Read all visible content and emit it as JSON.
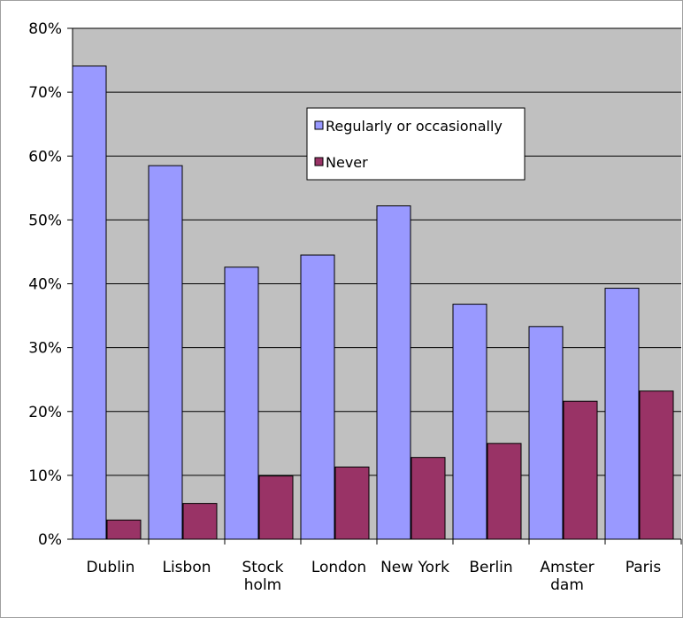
{
  "chart_data": {
    "type": "bar",
    "categories": [
      [
        "Dublin"
      ],
      [
        "Lisbon"
      ],
      [
        "Stock",
        "holm"
      ],
      [
        "London"
      ],
      [
        "New York"
      ],
      [
        "Berlin"
      ],
      [
        "Amster",
        "dam"
      ],
      [
        "Paris"
      ]
    ],
    "series": [
      {
        "name": "Regularly or occasionally",
        "values": [
          74.1,
          58.5,
          42.6,
          44.5,
          52.2,
          36.8,
          33.3,
          39.3
        ]
      },
      {
        "name": "Never",
        "values": [
          3.0,
          5.6,
          9.9,
          11.3,
          12.8,
          15.0,
          21.6,
          23.2
        ]
      }
    ],
    "ylim": [
      0,
      80
    ],
    "yticks": [
      "0%",
      "10%",
      "20%",
      "30%",
      "40%",
      "50%",
      "60%",
      "70%",
      "80%"
    ],
    "grid": true,
    "legend_position": "center-top",
    "colors": {
      "plot_background": "#c0c0c0",
      "series": [
        "#9999ff",
        "#993366"
      ],
      "grid": "#000000"
    }
  }
}
